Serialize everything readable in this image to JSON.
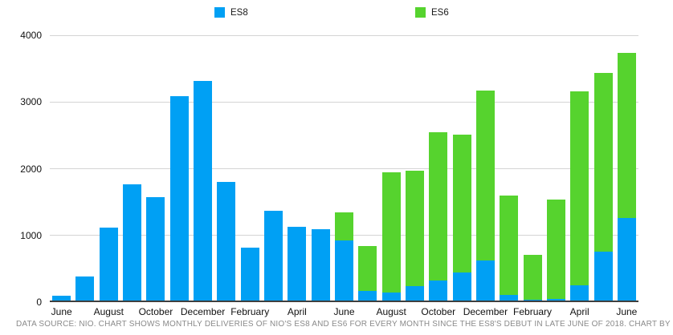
{
  "caption": "DATA SOURCE: NIO. CHART SHOWS MONTHLY DELIVERIES OF NIO'S ES8 AND ES6 FOR EVERY MONTH SINCE THE ES8'S DEBUT IN LATE JUNE OF 2018. CHART BY",
  "colors": {
    "es8_blue": "#00a0f4",
    "es6_green": "#56d32e",
    "gridline": "#d4d4d4",
    "axis_line": "#3f3f3f",
    "tick_text": "#111111",
    "caption_text": "#8a8a8a"
  },
  "chart_data": {
    "type": "bar",
    "stacked": true,
    "title": "",
    "xlabel": "",
    "ylabel": "",
    "ylim": [
      0,
      4000
    ],
    "yticks": [
      0,
      1000,
      2000,
      3000,
      4000
    ],
    "grid": true,
    "legend_position": "top",
    "categories": [
      "Jun 2018",
      "Jul 2018",
      "Aug 2018",
      "Sep 2018",
      "Oct 2018",
      "Nov 2018",
      "Dec 2018",
      "Jan 2019",
      "Feb 2019",
      "Mar 2019",
      "Apr 2019",
      "May 2019",
      "Jun 2019",
      "Jul 2019",
      "Aug 2019",
      "Sep 2019",
      "Oct 2019",
      "Nov 2019",
      "Dec 2019",
      "Jan 2020",
      "Feb 2020",
      "Mar 2020",
      "Apr 2020",
      "May 2020",
      "Jun 2020"
    ],
    "x_tick_labels": [
      "June",
      "August",
      "October",
      "December",
      "February",
      "April",
      "June",
      "August",
      "October",
      "December",
      "February",
      "April",
      "June"
    ],
    "x_tick_every": 2,
    "series": [
      {
        "name": "ES8",
        "color": "#00a0f4",
        "values": [
          100,
          381,
          1121,
          1766,
          1573,
          3089,
          3318,
          1805,
          811,
          1373,
          1124,
          1089,
          927,
          164,
          146,
          245,
          325,
          441,
          628,
          105,
          36,
          54,
          248,
          751,
          1264
        ]
      },
      {
        "name": "ES6",
        "color": "#56d32e",
        "values": [
          0,
          0,
          0,
          0,
          0,
          0,
          0,
          0,
          0,
          0,
          0,
          0,
          413,
          673,
          1797,
          1726,
          2220,
          2067,
          2542,
          1493,
          671,
          1479,
          2907,
          2685,
          2476
        ]
      }
    ]
  }
}
